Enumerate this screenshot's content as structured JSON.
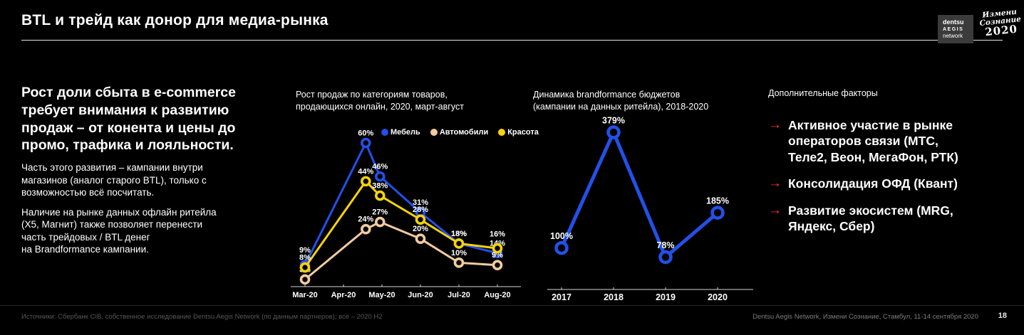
{
  "slide": {
    "title": "BTL и трейд как донор для медиа-рынка",
    "page_number": "18",
    "footer_left": "Источники: Сбербанк CIB, собственное исследование Dentsu Aegis Network (по данным партнеров); все – 2020 H2",
    "footer_right": "Dentsu Aegis Network, Измени Сознание, Стамбул, 11-14 сентября 2020"
  },
  "logos": {
    "dentsu": {
      "line1": "dentsu",
      "line2": "AEGIS",
      "line3": "network"
    },
    "event": {
      "line1": "Измени",
      "line2": "Сознание",
      "year": "2020"
    }
  },
  "left_panel": {
    "headline": "Рост доли сбыта в e-commerce\nтребует внимания к развитию\nпродаж – от конента и цены до\nпромо, трафика и лояльности.",
    "para1": "Часть этого развития – кампании внутри\nмагазинов (аналог старого BTL), только с\nвозможностью всё посчитать.",
    "para2": "Наличие на рынке данных офлайн ритейла\n(X5, Магнит) также позволяет перенести\nчасть трейдовых / BTL денег\nна Brandformance кампании."
  },
  "factors": {
    "heading": "Дополнительные факторы",
    "arrow": "→",
    "arrow_color": "#FF3A1E",
    "items": [
      "Активное участие в рынке\nоператоров связи (МТС,\nТеле2, Веон, МегаФон, РТК)",
      "Консолидация ОФД (Квант)",
      "Развитие экосистем (MRG,\nЯндекс, Сбер)"
    ]
  },
  "chart_data": [
    {
      "type": "line",
      "title": "Рост продаж по категориям товаров,\nпродающихся онлайн, 2020, март-август",
      "categories": [
        "Mar-20",
        "Apr-20",
        "May-20",
        "Jun-20",
        "Jul-20",
        "Aug-20"
      ],
      "x_positions": [
        0,
        1.58,
        1.95,
        3,
        4,
        5
      ],
      "ylim": [
        0,
        65
      ],
      "grid": false,
      "legend_position": "top",
      "series": [
        {
          "name": "Мебель",
          "color": "#2350E8",
          "values": [
            9,
            60,
            46,
            31,
            18,
            14
          ],
          "labels": [
            "9%",
            "60%",
            "46%",
            "31%",
            "18%",
            "14%"
          ],
          "label_dy": [
            -7,
            0,
            0,
            0,
            0,
            0
          ]
        },
        {
          "name": "Автомобили",
          "color": "#F2CBA0",
          "values": [
            3,
            24,
            27,
            20,
            10,
            9
          ],
          "labels": [
            "3%",
            "24%",
            "27%",
            "20%",
            "10%",
            "9%"
          ],
          "label_dy": [
            0,
            0,
            0,
            0,
            0,
            0
          ]
        },
        {
          "name": "Красота",
          "color": "#F6D309",
          "values": [
            8,
            44,
            38,
            28,
            18,
            16
          ],
          "labels": [
            "8%",
            "44%",
            "38%",
            "28%",
            "18%",
            "16%"
          ],
          "label_dy": [
            0,
            0,
            0,
            0,
            0,
            -6
          ]
        }
      ]
    },
    {
      "type": "line",
      "title": "Динамика brandformance бюджетов\n(кампании на данных ритейла), 2018-2020",
      "categories": [
        "2017",
        "2018",
        "2019",
        "2020"
      ],
      "x_positions": [
        0,
        1,
        2,
        3
      ],
      "ylim": [
        0,
        400
      ],
      "grid": false,
      "legend_position": "none",
      "series": [
        {
          "name": "Brandformance бюджеты",
          "color": "#2350E8",
          "values": [
            100,
            379,
            78,
            185
          ],
          "labels": [
            "100%",
            "379%",
            "78%",
            "185%"
          ],
          "label_dy": [
            0,
            0,
            0,
            0
          ]
        }
      ]
    }
  ]
}
